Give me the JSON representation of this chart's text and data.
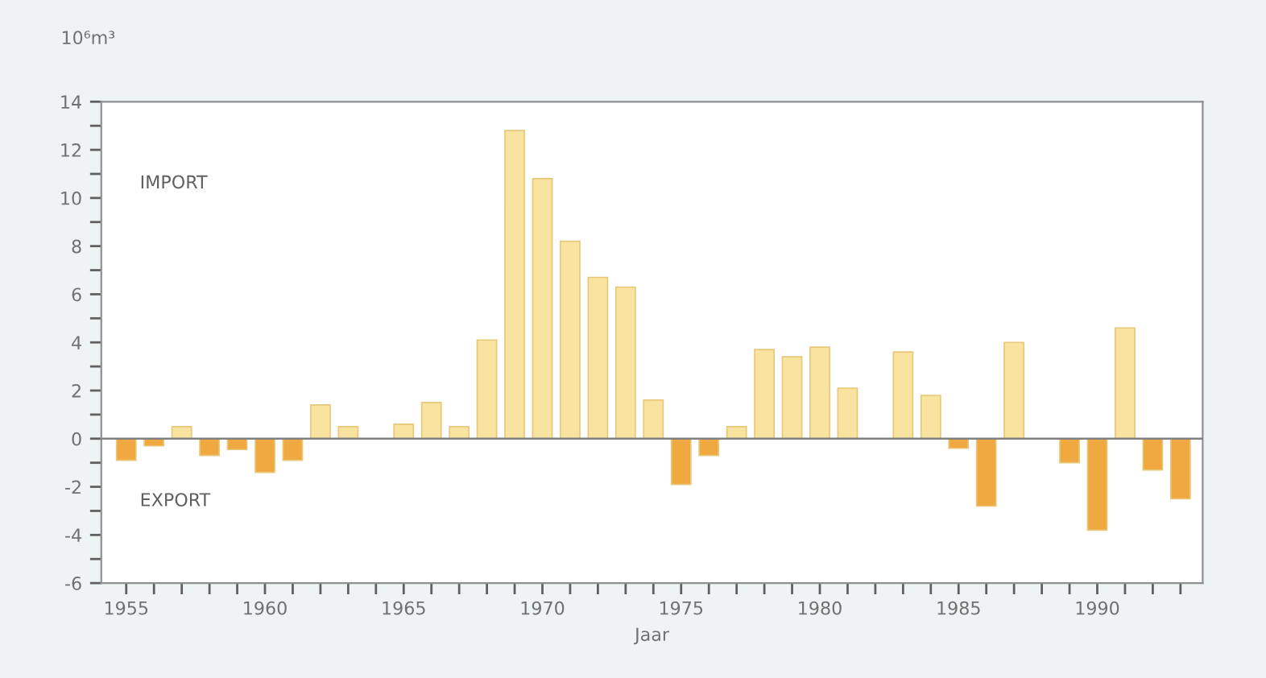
{
  "chart_data": {
    "type": "bar",
    "ylabel": "10⁶m³",
    "xlabel": "Jaar",
    "annotations": [
      "IMPORT",
      "EXPORT"
    ],
    "x": [
      1955,
      1956,
      1957,
      1958,
      1959,
      1960,
      1961,
      1962,
      1963,
      1964,
      1965,
      1966,
      1967,
      1968,
      1969,
      1970,
      1971,
      1972,
      1973,
      1974,
      1975,
      1976,
      1977,
      1978,
      1979,
      1980,
      1981,
      1982,
      1983,
      1984,
      1985,
      1986,
      1987,
      1988,
      1989,
      1990,
      1991,
      1992,
      1993
    ],
    "values": [
      -0.9,
      -0.3,
      0.5,
      -0.7,
      -0.45,
      -1.4,
      -0.9,
      1.4,
      0.5,
      null,
      0.6,
      1.5,
      0.5,
      4.1,
      12.8,
      10.8,
      8.2,
      6.7,
      6.3,
      1.6,
      -1.9,
      -0.7,
      0.5,
      3.7,
      3.4,
      3.8,
      2.1,
      null,
      3.6,
      1.8,
      -0.4,
      -2.8,
      4.0,
      null,
      -1.0,
      -3.8,
      4.6,
      -1.3,
      -2.5
    ],
    "colors": [
      "#f0a840",
      "#f0a840",
      "#f8e4a0",
      "#f0a840",
      "#f0a840",
      "#f0a840",
      "#f0a840",
      "#f8e4a0",
      "#f8e4a0",
      "#f8e4a0",
      "#f8e4a0",
      "#f8e4a0",
      "#f8e4a0",
      "#f8e4a0",
      "#f8e4a0",
      "#f8e4a0",
      "#f8e4a0",
      "#f8e4a0",
      "#f8e4a0",
      "#f8e4a0",
      "#f0a840",
      "#f0a840",
      "#f8e4a0",
      "#f8e4a0",
      "#f8e4a0",
      "#f8e4a0",
      "#f8e4a0",
      "#f8e4a0",
      "#f8e4a0",
      "#f8e4a0",
      "#f0a840",
      "#f0a840",
      "#f8e4a0",
      "#f8e4a0",
      "#f0a840",
      "#f0a840",
      "#f8e4a0",
      "#f0a840",
      "#f0a840"
    ],
    "xlim": [
      1954.1,
      1993.8
    ],
    "xticks": [
      1955,
      {
        "value": 1956,
        "label": null
      },
      {
        "value": 1957,
        "label": null
      },
      {
        "value": 1958,
        "label": null
      },
      {
        "value": 1959,
        "label": null
      },
      1960,
      {
        "value": 1961,
        "label": null
      },
      {
        "value": 1962,
        "label": null
      },
      {
        "value": 1963,
        "label": null
      },
      {
        "value": 1964,
        "label": null
      },
      1965,
      {
        "value": 1966,
        "label": null
      },
      {
        "value": 1967,
        "label": null
      },
      {
        "value": 1968,
        "label": null
      },
      {
        "value": 1969,
        "label": null
      },
      1970,
      {
        "value": 1971,
        "label": null
      },
      {
        "value": 1972,
        "label": null
      },
      {
        "value": 1973,
        "label": null
      },
      {
        "value": 1974,
        "label": null
      },
      1975,
      {
        "value": 1976,
        "label": null
      },
      {
        "value": 1977,
        "label": null
      },
      {
        "value": 1978,
        "label": null
      },
      {
        "value": 1979,
        "label": null
      },
      1980,
      {
        "value": 1981,
        "label": null
      },
      {
        "value": 1982,
        "label": null
      },
      {
        "value": 1983,
        "label": null
      },
      {
        "value": 1984,
        "label": null
      },
      1985,
      {
        "value": 1986,
        "label": null
      },
      {
        "value": 1987,
        "label": null
      },
      {
        "value": 1988,
        "label": null
      },
      {
        "value": 1989,
        "label": null
      },
      1990,
      {
        "value": 1991,
        "label": null
      },
      {
        "value": 1992,
        "label": null
      },
      {
        "value": 1993,
        "label": null
      }
    ],
    "ylim": [
      -6,
      14
    ],
    "yticks": [
      -6,
      {
        "value": -5,
        "label": null
      },
      -4,
      {
        "value": -3,
        "label": null
      },
      -2,
      {
        "value": -1,
        "label": null
      },
      0,
      {
        "value": 1,
        "label": null
      },
      2,
      {
        "value": 3,
        "label": null
      },
      4,
      {
        "value": 5,
        "label": null
      },
      6,
      {
        "value": 7,
        "label": null
      },
      8,
      {
        "value": 9,
        "label": null
      },
      10,
      {
        "value": 11,
        "label": null
      },
      12,
      {
        "value": 13,
        "label": null
      },
      14
    ],
    "ref_lines": [
      {
        "axis": "y",
        "value": 0,
        "color": "#808080"
      }
    ],
    "grid": false,
    "legend": false
  }
}
